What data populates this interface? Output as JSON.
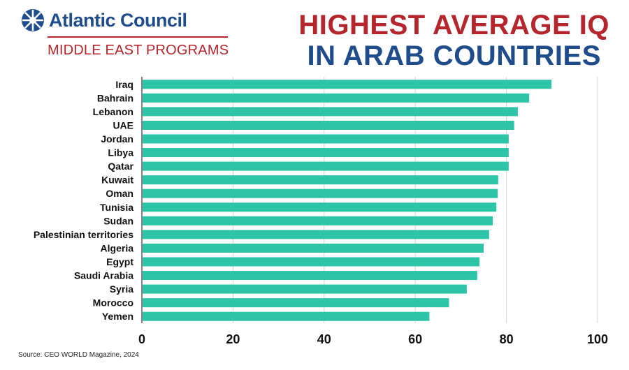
{
  "brand": {
    "name": "Atlantic Council",
    "subtitle": "MIDDLE EAST PROGRAMS",
    "logo_icon": "globe-grid-icon",
    "name_color": "#1f4d8c",
    "accent_color": "#b5252c"
  },
  "title_line1": "HIGHEST AVERAGE IQ",
  "title_line2": "IN ARAB COUNTRIES",
  "source": "Source: CEO WORLD Magazine, 2024",
  "chart_data": {
    "type": "bar",
    "orientation": "horizontal",
    "title": "HIGHEST AVERAGE IQ IN ARAB COUNTRIES",
    "xlabel": "",
    "ylabel": "",
    "categories": [
      "Iraq",
      "Bahrain",
      "Lebanon",
      "UAE",
      "Jordan",
      "Libya",
      "Qatar",
      "Kuwait",
      "Oman",
      "Tunisia",
      "Sudan",
      "Palestinian territories",
      "Algeria",
      "Egypt",
      "Saudi Arabia",
      "Syria",
      "Morocco",
      "Yemen"
    ],
    "values": [
      89.9,
      85.0,
      82.5,
      81.7,
      80.5,
      80.5,
      80.5,
      78.2,
      78.1,
      77.8,
      77.0,
      76.2,
      75.0,
      74.1,
      73.6,
      71.3,
      67.4,
      63.1
    ],
    "xticks": [
      "0",
      "20",
      "40",
      "60",
      "80",
      "100"
    ],
    "xlim": [
      0,
      100
    ],
    "grid": true,
    "bar_color": "#2ec4a8",
    "legend": "none"
  }
}
